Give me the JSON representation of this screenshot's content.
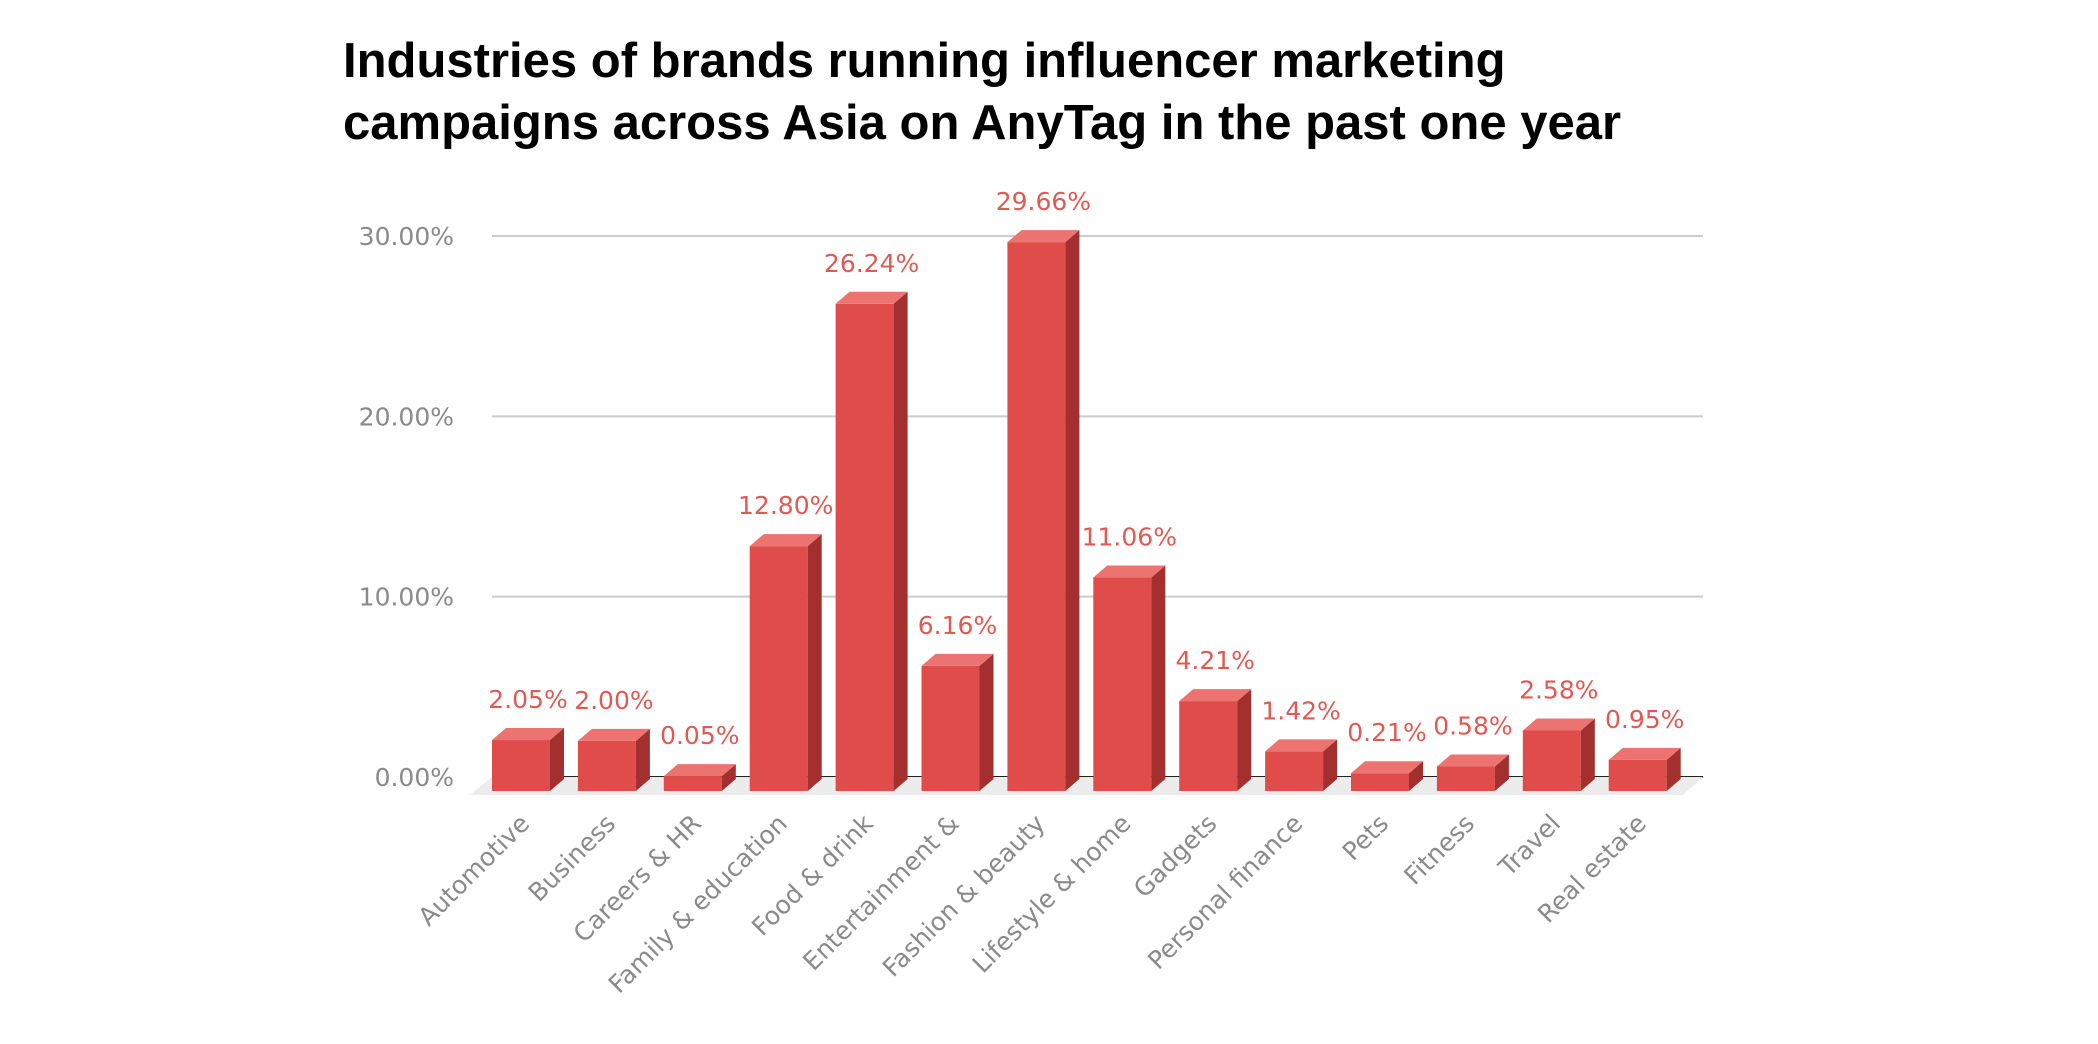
{
  "chart_data": {
    "type": "bar",
    "title_lines": [
      "Industries of brands running influencer marketing",
      "campaigns across Asia on AnyTag in the past one year"
    ],
    "categories": [
      "Automotive",
      "Business",
      "Careers & HR",
      "Family & education",
      "Food & drink",
      "Entertainment &",
      "Fashion & beauty",
      "Lifestyle & home",
      "Gadgets",
      "Personal finance",
      "Pets",
      "Fitness",
      "Travel",
      "Real estate"
    ],
    "values": [
      2.05,
      2.0,
      0.05,
      12.8,
      26.24,
      6.16,
      29.66,
      11.06,
      4.21,
      1.42,
      0.21,
      0.58,
      2.58,
      0.95
    ],
    "data_labels": [
      "2.05%",
      "2.00%",
      "0.05%",
      "12.80%",
      "26.24%",
      "6.16%",
      "29.66%",
      "11.06%",
      "4.21%",
      "1.42%",
      "0.21%",
      "0.58%",
      "2.58%",
      "0.95%"
    ],
    "y_ticks": [
      0,
      10,
      20,
      30
    ],
    "y_tick_labels": [
      "0.00%",
      "10.00%",
      "20.00%",
      "30.00%"
    ],
    "ylim": [
      0,
      30
    ],
    "xlabel": "",
    "ylabel": "",
    "grid": true,
    "legend": "none",
    "style": "3d-column",
    "colors": {
      "bar_front": "#e04c4a",
      "bar_top": "#ec7370",
      "bar_side": "#a3302e",
      "data_label": "#e05a55",
      "grid": "#cccccc",
      "axis": "#222222",
      "floor": "#ececec"
    }
  }
}
